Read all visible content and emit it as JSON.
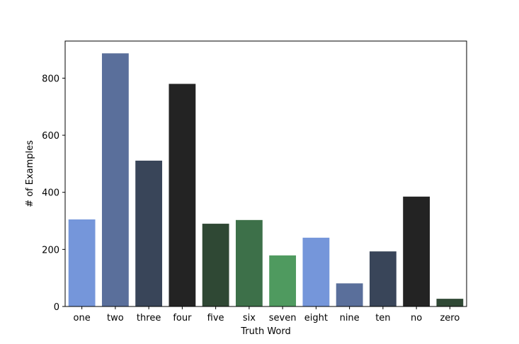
{
  "chart_data": {
    "type": "bar",
    "title": "",
    "xlabel": "Truth Word",
    "ylabel": "# of Examples",
    "ylim": [
      0,
      930
    ],
    "yticks": [
      0,
      200,
      400,
      600,
      800
    ],
    "grid": false,
    "legend": "none",
    "categories": [
      "one",
      "two",
      "three",
      "four",
      "five",
      "six",
      "seven",
      "eight",
      "nine",
      "ten",
      "no",
      "zero"
    ],
    "values": [
      305,
      887,
      511,
      780,
      290,
      303,
      179,
      241,
      81,
      193,
      385,
      27
    ],
    "colors": [
      "#7596da",
      "#5a6f9b",
      "#394559",
      "#232323",
      "#2f4834",
      "#3d7049",
      "#4f9a5f",
      "#7596da",
      "#5a6f9b",
      "#394559",
      "#232323",
      "#2f4834"
    ]
  }
}
